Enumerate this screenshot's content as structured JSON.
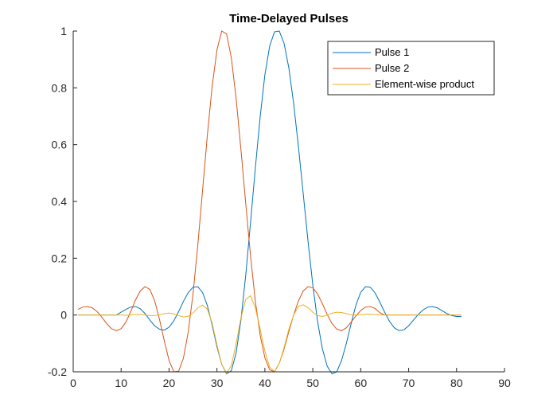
{
  "chart_data": {
    "type": "line",
    "title": "Time-Delayed Pulses",
    "xlabel": "",
    "ylabel": "",
    "xlim": [
      0,
      90
    ],
    "ylim": [
      -0.2,
      1
    ],
    "x_ticks": [
      "0",
      "10",
      "20",
      "30",
      "40",
      "50",
      "60",
      "70",
      "80",
      "90"
    ],
    "y_ticks": [
      "-0.2",
      "0",
      "0.2",
      "0.4",
      "0.6",
      "0.8",
      "1"
    ],
    "grid": false,
    "legend_position": "top-right",
    "x": [
      1,
      2,
      3,
      4,
      5,
      6,
      7,
      8,
      9,
      10,
      11,
      12,
      13,
      14,
      15,
      16,
      17,
      18,
      19,
      20,
      21,
      22,
      23,
      24,
      25,
      26,
      27,
      28,
      29,
      30,
      31,
      32,
      33,
      34,
      35,
      36,
      37,
      38,
      39,
      40,
      41,
      42,
      43,
      44,
      45,
      46,
      47,
      48,
      49,
      50,
      51,
      52,
      53,
      54,
      55,
      56,
      57,
      58,
      59,
      60,
      61,
      62,
      63,
      64,
      65,
      66,
      67,
      68,
      69,
      70,
      71,
      72,
      73,
      74,
      75,
      76,
      77,
      78,
      79,
      80,
      81
    ],
    "series": [
      {
        "name": "Pulse 1",
        "color": "#0072BD",
        "values": [
          0.0,
          0.0,
          0.0,
          0.0,
          0.0,
          0.0,
          0.0,
          0.0,
          0.0,
          0.01,
          0.02,
          0.028,
          0.03,
          0.022,
          0.005,
          -0.018,
          -0.038,
          -0.05,
          -0.053,
          -0.043,
          -0.02,
          0.012,
          0.048,
          0.079,
          0.098,
          0.1,
          0.079,
          0.033,
          -0.036,
          -0.112,
          -0.174,
          -0.207,
          -0.196,
          -0.133,
          -0.018,
          0.14,
          0.325,
          0.516,
          0.696,
          0.846,
          0.947,
          0.997,
          1.0,
          0.957,
          0.87,
          0.745,
          0.593,
          0.427,
          0.26,
          0.106,
          -0.023,
          -0.119,
          -0.18,
          -0.207,
          -0.2,
          -0.16,
          -0.1,
          -0.03,
          0.035,
          0.08,
          0.1,
          0.098,
          0.078,
          0.045,
          0.01,
          -0.022,
          -0.045,
          -0.055,
          -0.052,
          -0.038,
          -0.018,
          0.002,
          0.018,
          0.028,
          0.03,
          0.025,
          0.015,
          0.005,
          -0.002,
          -0.005,
          -0.005
        ]
      },
      {
        "name": "Pulse 2",
        "color": "#D95319",
        "values": [
          0.02,
          0.028,
          0.03,
          0.025,
          0.012,
          -0.008,
          -0.03,
          -0.048,
          -0.055,
          -0.048,
          -0.025,
          0.012,
          0.053,
          0.085,
          0.1,
          0.09,
          0.05,
          -0.015,
          -0.09,
          -0.16,
          -0.2,
          -0.198,
          -0.152,
          -0.06,
          0.074,
          0.246,
          0.44,
          0.634,
          0.806,
          0.934,
          1.0,
          0.99,
          0.906,
          0.762,
          0.583,
          0.393,
          0.209,
          0.05,
          -0.07,
          -0.15,
          -0.193,
          -0.2,
          -0.17,
          -0.12,
          -0.058,
          0.0,
          0.05,
          0.085,
          0.1,
          0.096,
          0.074,
          0.04,
          0.002,
          -0.03,
          -0.05,
          -0.055,
          -0.045,
          -0.025,
          -0.003,
          0.016,
          0.028,
          0.03,
          0.023,
          0.008,
          0.0,
          0.0,
          0.0,
          0.0,
          0.0,
          0.0,
          0.0,
          0.0,
          0.0,
          0.0,
          0.0,
          0.0,
          0.0,
          0.0,
          0.0,
          0.0,
          0.0
        ]
      },
      {
        "name": "Element-wise product",
        "color": "#EDB120",
        "values": [
          0.0,
          0.0,
          0.0,
          0.0,
          0.0,
          0.0,
          0.0,
          0.0,
          0.0,
          0.0,
          -0.001,
          0.0,
          0.002,
          0.002,
          0.0,
          -0.002,
          -0.002,
          0.001,
          0.005,
          0.007,
          0.004,
          -0.002,
          -0.007,
          -0.005,
          0.007,
          0.025,
          0.035,
          0.021,
          -0.029,
          -0.105,
          -0.174,
          -0.205,
          -0.178,
          -0.101,
          -0.01,
          0.055,
          0.068,
          0.026,
          -0.049,
          -0.127,
          -0.183,
          -0.199,
          -0.17,
          -0.115,
          -0.05,
          0.0,
          0.03,
          0.036,
          0.026,
          0.01,
          -0.002,
          -0.005,
          -0.0,
          0.006,
          0.01,
          0.009,
          0.005,
          0.001,
          -0.0,
          0.001,
          0.003,
          0.003,
          0.002,
          0.0,
          0.0,
          -0.0,
          -0.0,
          -0.0,
          -0.0,
          -0.0,
          -0.0,
          0.0,
          0.0,
          0.0,
          0.0,
          0.0,
          0.0,
          0.0,
          0.0,
          0.0,
          0.0
        ]
      }
    ]
  }
}
